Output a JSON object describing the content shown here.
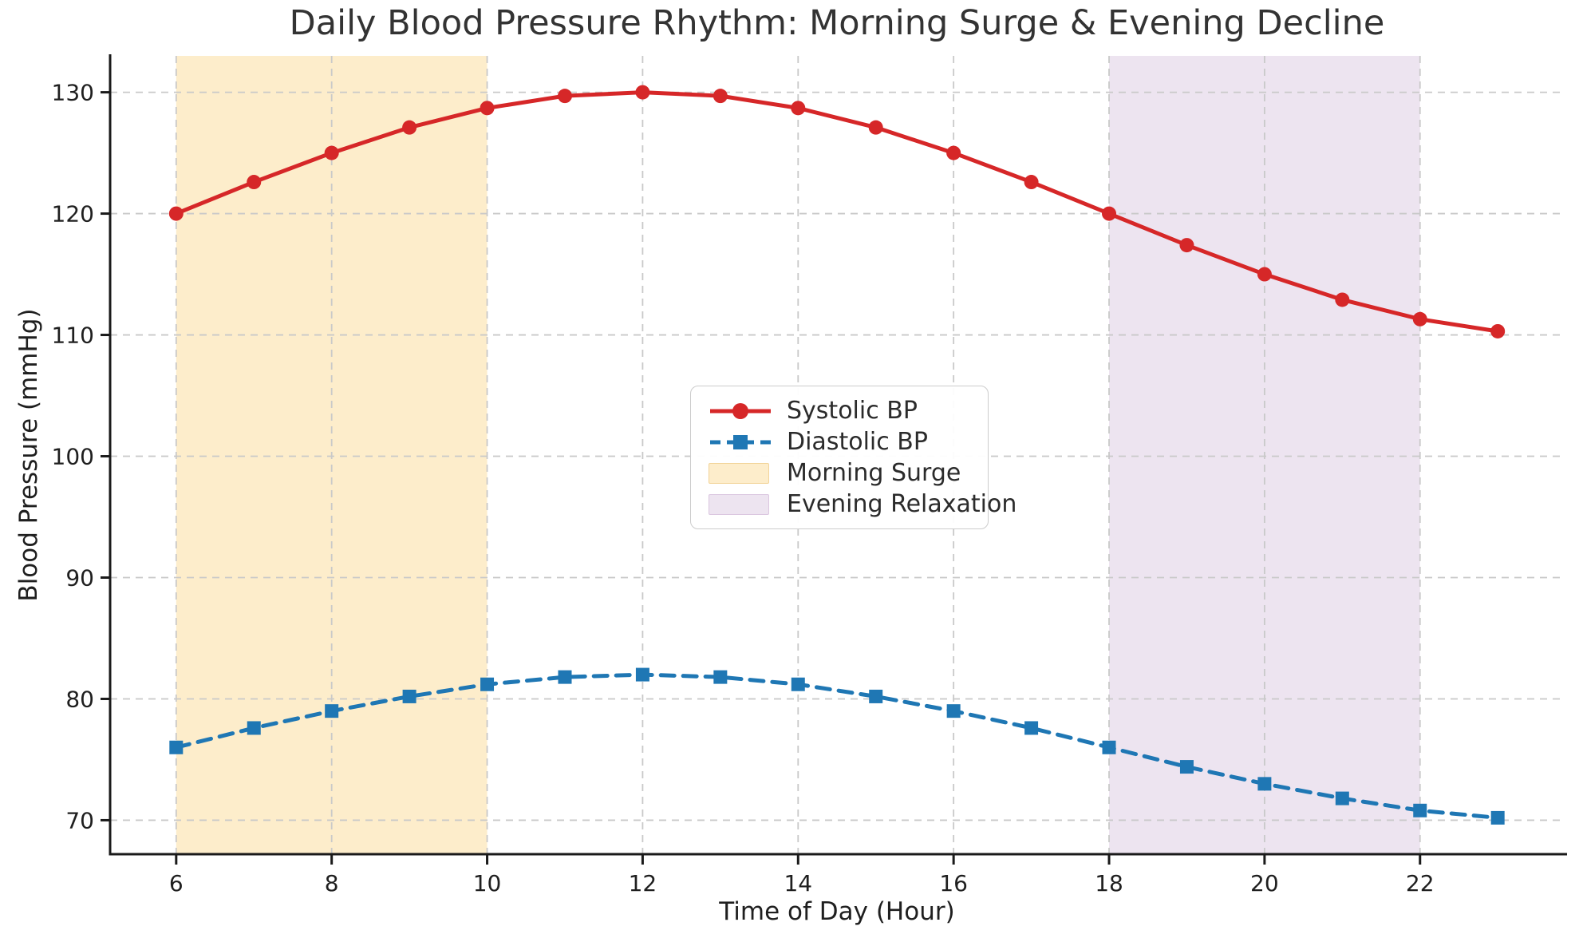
{
  "title": "Daily Blood Pressure Rhythm: Morning Surge & Evening Decline",
  "chart_data": {
    "type": "line",
    "title": "Daily Blood Pressure Rhythm: Morning Surge & Evening Decline",
    "xlabel": "Time of Day (Hour)",
    "ylabel": "Blood Pressure (mmHg)",
    "x": [
      6,
      7,
      8,
      9,
      10,
      11,
      12,
      13,
      14,
      15,
      16,
      17,
      18,
      19,
      20,
      21,
      22,
      23
    ],
    "series": [
      {
        "name": "Systolic BP",
        "color": "#d62728",
        "line_style": "solid",
        "marker": "circle",
        "values": [
          120.0,
          122.6,
          125.0,
          127.1,
          128.7,
          129.7,
          130.0,
          129.7,
          128.7,
          127.1,
          125.0,
          122.6,
          120.0,
          117.4,
          115.0,
          112.9,
          111.3,
          110.3
        ]
      },
      {
        "name": "Diastolic BP",
        "color": "#1f77b4",
        "line_style": "dashed",
        "marker": "square",
        "values": [
          76.0,
          77.6,
          79.0,
          80.2,
          81.2,
          81.8,
          82.0,
          81.8,
          81.2,
          80.2,
          79.0,
          77.6,
          76.0,
          74.4,
          73.0,
          71.8,
          70.8,
          70.2
        ]
      }
    ],
    "bands": [
      {
        "name": "Morning Surge",
        "x_start": 6,
        "x_end": 10,
        "fill": "#fdedcb",
        "legend_border": "#f2d49a"
      },
      {
        "name": "Evening Relaxation",
        "x_start": 18,
        "x_end": 22,
        "fill": "#ede4f0",
        "legend_border": "#dbc7e0"
      }
    ],
    "xticks": [
      6,
      8,
      10,
      12,
      14,
      16,
      18,
      20,
      22
    ],
    "yticks": [
      70,
      80,
      90,
      100,
      110,
      120,
      130
    ],
    "xlim": [
      5.15,
      23.85
    ],
    "ylim": [
      67.2,
      133.0
    ],
    "grid": true,
    "legend_position": "center",
    "colors": {
      "grid": "#c9c9c9",
      "spine": "#1a1a1a",
      "tick_label": "#1f1f1f",
      "title_text": "#333333"
    }
  }
}
